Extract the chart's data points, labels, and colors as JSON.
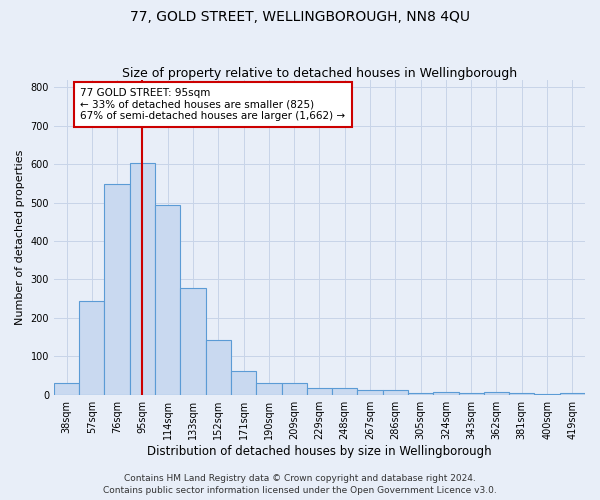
{
  "title": "77, GOLD STREET, WELLINGBOROUGH, NN8 4QU",
  "subtitle": "Size of property relative to detached houses in Wellingborough",
  "xlabel": "Distribution of detached houses by size in Wellingborough",
  "ylabel": "Number of detached properties",
  "footer_line1": "Contains HM Land Registry data © Crown copyright and database right 2024.",
  "footer_line2": "Contains public sector information licensed under the Open Government Licence v3.0.",
  "categories": [
    "38sqm",
    "57sqm",
    "76sqm",
    "95sqm",
    "114sqm",
    "133sqm",
    "152sqm",
    "171sqm",
    "190sqm",
    "209sqm",
    "229sqm",
    "248sqm",
    "267sqm",
    "286sqm",
    "305sqm",
    "324sqm",
    "343sqm",
    "362sqm",
    "381sqm",
    "400sqm",
    "419sqm"
  ],
  "values": [
    30,
    245,
    548,
    603,
    493,
    277,
    143,
    62,
    30,
    30,
    17,
    17,
    13,
    13,
    5,
    7,
    5,
    7,
    5,
    3,
    5
  ],
  "bar_color": "#c9d9f0",
  "bar_edge_color": "#5b9bd5",
  "red_line_index": 3,
  "annotation_line1": "77 GOLD STREET: 95sqm",
  "annotation_line2": "← 33% of detached houses are smaller (825)",
  "annotation_line3": "67% of semi-detached houses are larger (1,662) →",
  "annotation_box_color": "#ffffff",
  "annotation_box_edge": "#cc0000",
  "red_line_color": "#cc0000",
  "ylim": [
    0,
    820
  ],
  "yticks": [
    0,
    100,
    200,
    300,
    400,
    500,
    600,
    700,
    800
  ],
  "grid_color": "#c8d4e8",
  "bg_color": "#e8eef8",
  "title_fontsize": 10,
  "subtitle_fontsize": 9,
  "xlabel_fontsize": 8.5,
  "ylabel_fontsize": 8,
  "tick_fontsize": 7,
  "annotation_fontsize": 7.5,
  "footer_fontsize": 6.5
}
